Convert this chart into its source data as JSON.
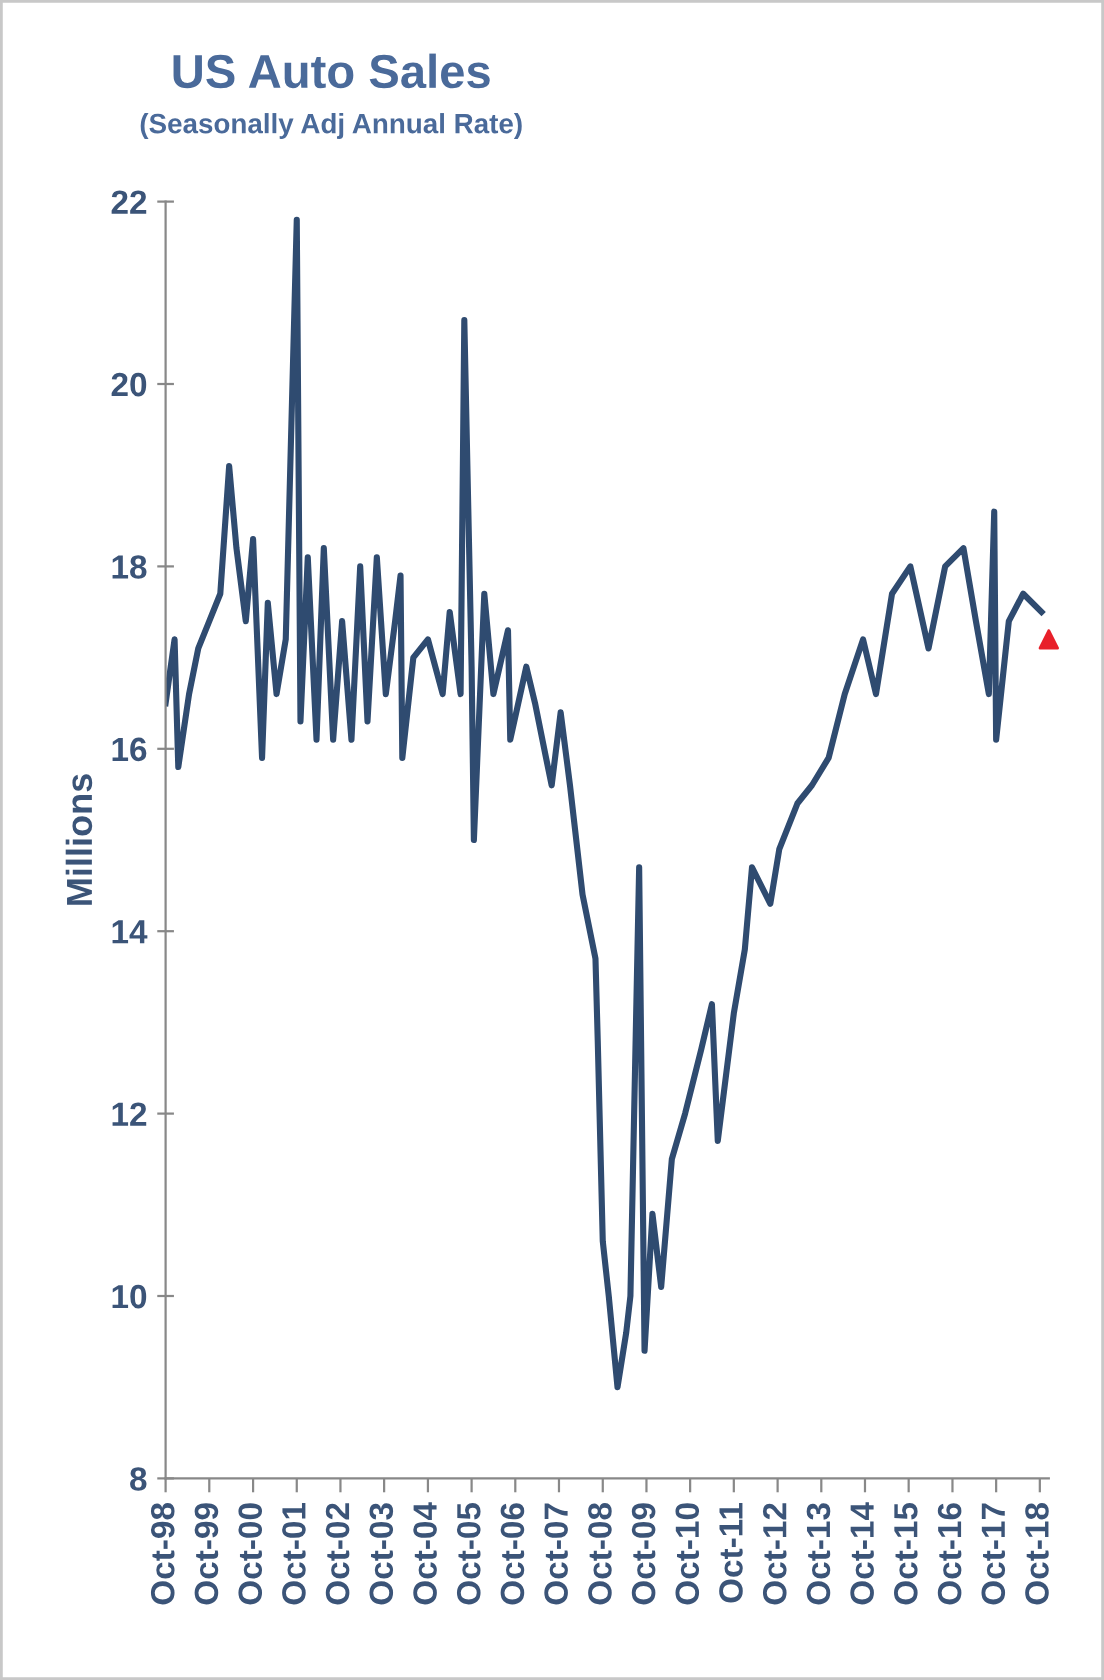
{
  "chart_data": {
    "type": "line",
    "title": "US Auto Sales",
    "subtitle": "(Seasonally Adj Annual Rate)",
    "ylabel": "Millions",
    "x": [
      "1998-10-01",
      "1998-12-15",
      "1999-01-15",
      "1999-04-15",
      "1999-07-01",
      "1999-10-01",
      "2000-01-01",
      "2000-03-15",
      "2000-05-15",
      "2000-08-01",
      "2000-10-01",
      "2000-12-15",
      "2001-02-01",
      "2001-04-15",
      "2001-07-01",
      "2001-10-01",
      "2001-11-01",
      "2002-01-01",
      "2002-03-15",
      "2002-05-15",
      "2002-08-01",
      "2002-10-15",
      "2003-01-01",
      "2003-03-15",
      "2003-05-15",
      "2003-08-01",
      "2003-10-15",
      "2004-01-01",
      "2004-02-15",
      "2004-03-01",
      "2004-06-01",
      "2004-10-01",
      "2005-02-01",
      "2005-04-01",
      "2005-07-01",
      "2005-08-01",
      "2005-10-01",
      "2005-10-20",
      "2006-01-15",
      "2006-04-01",
      "2006-08-01",
      "2006-08-20",
      "2007-01-01",
      "2007-03-15",
      "2007-06-15",
      "2007-08-01",
      "2007-10-15",
      "2008-01-01",
      "2008-04-15",
      "2008-08-01",
      "2008-08-20",
      "2008-10-01",
      "2008-11-20",
      "2009-02-01",
      "2009-04-15",
      "2009-05-20",
      "2009-08-01",
      "2009-09-15",
      "2009-11-20",
      "2010-02-01",
      "2010-05-01",
      "2010-08-20",
      "2011-01-01",
      "2011-04-01",
      "2011-05-20",
      "2011-10-01",
      "2012-01-01",
      "2012-03-01",
      "2012-08-01",
      "2012-10-15",
      "2013-03-15",
      "2013-07-15",
      "2013-12-01",
      "2014-04-15",
      "2014-09-15",
      "2015-01-01",
      "2015-05-15",
      "2015-10-15",
      "2016-03-15",
      "2016-08-01",
      "2017-01-01",
      "2017-04-15",
      "2017-08-01",
      "2017-09-15",
      "2017-10-01",
      "2018-01-15",
      "2018-05-15",
      "2018-10-15"
    ],
    "series": [
      {
        "type": "line",
        "color": "#2f4b70",
        "values": [
          16.5,
          17.2,
          15.8,
          16.6,
          17.1,
          17.4,
          17.7,
          19.1,
          18.2,
          17.4,
          18.3,
          15.9,
          17.6,
          16.6,
          17.2,
          21.8,
          16.3,
          18.1,
          16.1,
          18.2,
          16.1,
          17.4,
          16.1,
          18.0,
          16.3,
          18.1,
          16.6,
          17.4,
          17.9,
          15.9,
          17.0,
          17.2,
          16.6,
          17.5,
          16.6,
          20.7,
          16.9,
          15.0,
          17.7,
          16.6,
          17.3,
          16.1,
          16.9,
          16.5,
          15.9,
          15.6,
          16.4,
          15.6,
          14.4,
          13.7,
          12.8,
          10.6,
          10.0,
          9.0,
          9.6,
          10.0,
          14.7,
          9.4,
          10.9,
          10.1,
          11.5,
          12.0,
          12.7,
          13.2,
          11.7,
          13.1,
          13.8,
          14.7,
          14.3,
          14.9,
          15.4,
          15.6,
          15.9,
          16.6,
          17.2,
          16.6,
          17.7,
          18.0,
          17.1,
          18.0,
          18.2,
          17.4,
          16.6,
          18.6,
          16.1,
          17.4,
          17.7,
          17.5
        ]
      },
      {
        "type": "scatter",
        "color": "#e8202a",
        "marker": "triangle",
        "x": [
          "2018-12-15"
        ],
        "values": [
          17.2
        ]
      }
    ],
    "xlim": [
      "1998-10-01",
      "2018-12-15"
    ],
    "xticks": [
      {
        "value": "1998-10-01",
        "label": "Oct-98"
      },
      {
        "value": "1999-10-01",
        "label": "Oct-99"
      },
      {
        "value": "2000-10-01",
        "label": "Oct-00"
      },
      {
        "value": "2001-10-01",
        "label": "Oct-01"
      },
      {
        "value": "2002-10-01",
        "label": "Oct-02"
      },
      {
        "value": "2003-10-01",
        "label": "Oct-03"
      },
      {
        "value": "2004-10-01",
        "label": "Oct-04"
      },
      {
        "value": "2005-10-01",
        "label": "Oct-05"
      },
      {
        "value": "2006-10-01",
        "label": "Oct-06"
      },
      {
        "value": "2007-10-01",
        "label": "Oct-07"
      },
      {
        "value": "2008-10-01",
        "label": "Oct-08"
      },
      {
        "value": "2009-10-01",
        "label": "Oct-09"
      },
      {
        "value": "2010-10-01",
        "label": "Oct-10"
      },
      {
        "value": "2011-10-01",
        "label": "Oct-11"
      },
      {
        "value": "2012-10-01",
        "label": "Oct-12"
      },
      {
        "value": "2013-10-01",
        "label": "Oct-13"
      },
      {
        "value": "2014-10-01",
        "label": "Oct-14"
      },
      {
        "value": "2015-10-01",
        "label": "Oct-15"
      },
      {
        "value": "2016-10-01",
        "label": "Oct-16"
      },
      {
        "value": "2017-10-01",
        "label": "Oct-17"
      },
      {
        "value": "2018-10-01",
        "label": "Oct-18"
      }
    ],
    "ylim": [
      8,
      22
    ],
    "yticks": [
      8,
      10,
      12,
      14,
      16,
      18,
      20,
      22
    ],
    "line_style": "solid",
    "grid": false,
    "legend": false
  }
}
